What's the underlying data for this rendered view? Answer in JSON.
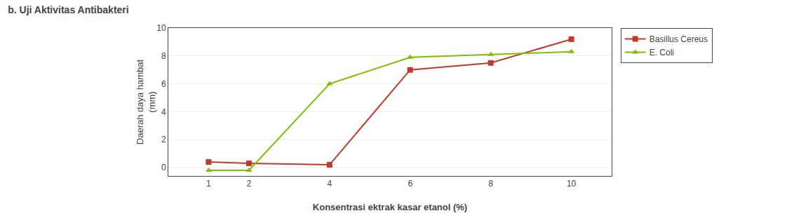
{
  "chart_data": {
    "type": "line",
    "title": "b.\tUji Aktivitas Antibakteri",
    "x_label": "Konsentrasi ektrak kasar etanol (%)",
    "y_label": "Daerah daya hambat\n(mm)",
    "x": [
      1,
      2,
      4,
      6,
      8,
      10
    ],
    "series": [
      {
        "name": "Basillus Cereus",
        "color": "#c0392b",
        "marker": "square",
        "values": [
          0.4,
          0.3,
          0.2,
          7.0,
          7.5,
          9.2
        ]
      },
      {
        "name": "E. Coli",
        "color": "#7dc000",
        "marker": "triangle-up",
        "values": [
          -0.2,
          -0.2,
          6.0,
          7.9,
          8.1,
          8.3
        ]
      }
    ],
    "xlim": [
      0,
      11
    ],
    "xticks": [
      1,
      2,
      4,
      6,
      8,
      10
    ],
    "ylim": [
      -0.6,
      10.0
    ],
    "yticks": [
      0,
      2,
      4,
      6,
      8,
      10
    ],
    "grid": "y",
    "legend": "upper right"
  }
}
